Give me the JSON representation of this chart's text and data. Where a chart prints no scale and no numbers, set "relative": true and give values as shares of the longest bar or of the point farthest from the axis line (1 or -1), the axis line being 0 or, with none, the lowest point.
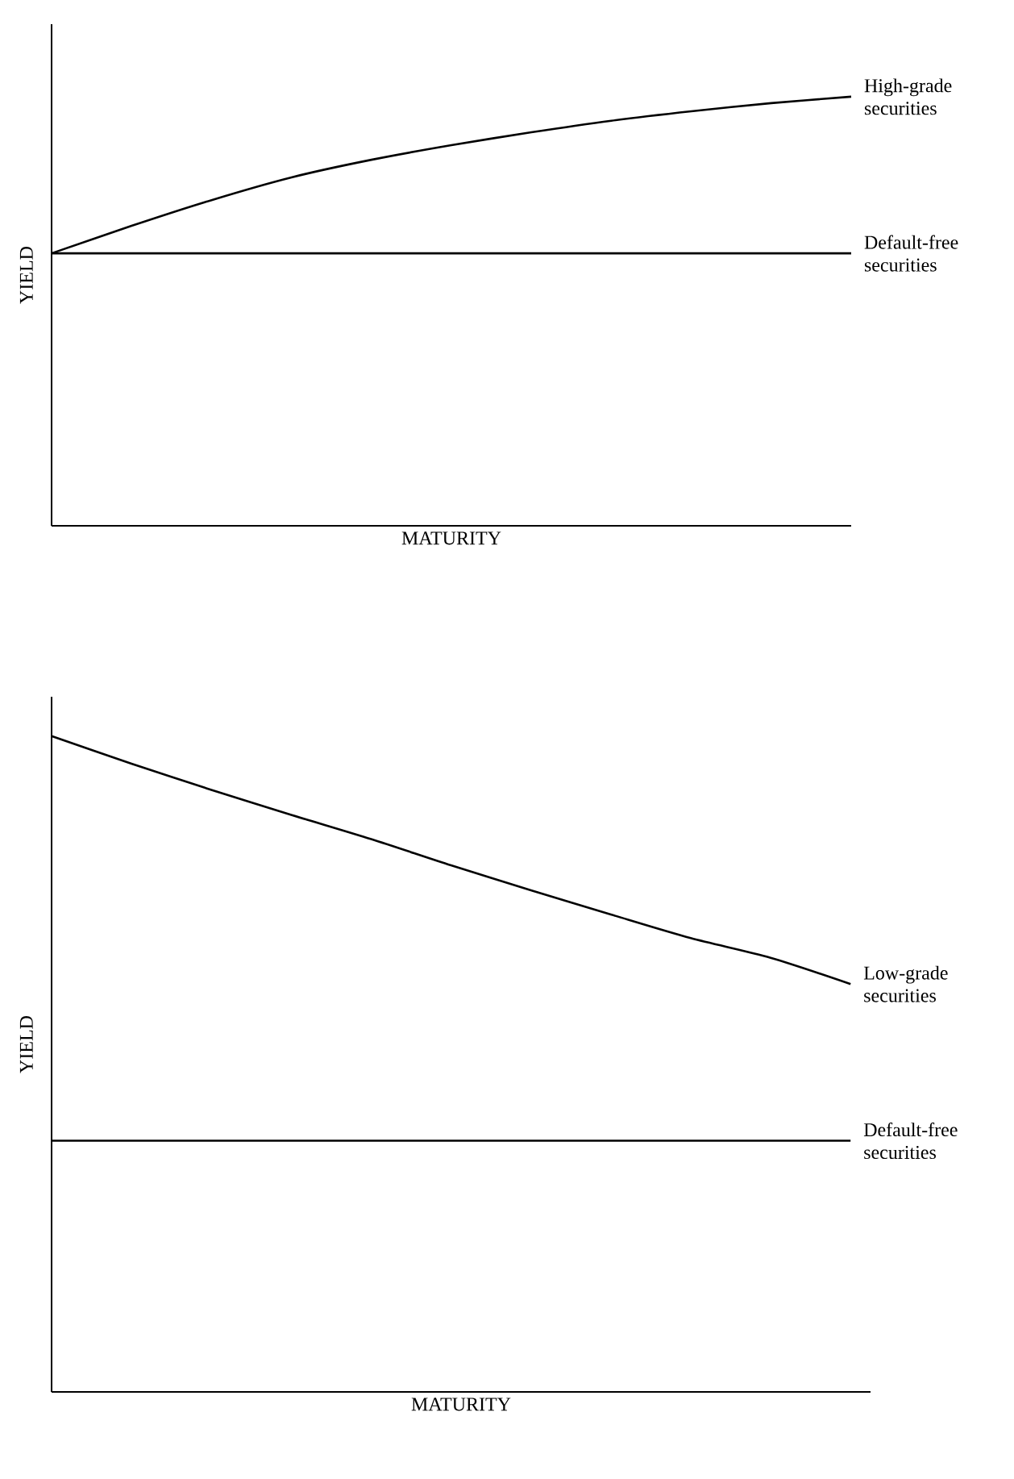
{
  "chart_data": [
    {
      "type": "line",
      "relative": true,
      "xlabel": "MATURITY",
      "ylabel": "YIELD",
      "categories": [
        null,
        null,
        null,
        null,
        null,
        null,
        null,
        null,
        null,
        null,
        null
      ],
      "series": [
        {
          "name": "High-grade securities",
          "color": "#000000",
          "values": [
            0.635,
            0.699,
            0.759,
            0.812,
            0.853,
            0.887,
            0.917,
            0.944,
            0.966,
            0.985,
            1
          ]
        },
        {
          "name": "Default-free securities",
          "color": "#000000",
          "values": [
            0.635,
            0.635,
            0.635,
            0.635,
            0.635,
            0.635,
            0.635,
            0.635,
            0.635,
            0.635,
            0.635
          ]
        }
      ]
    },
    {
      "type": "line",
      "relative": true,
      "xlabel": "MATURITY",
      "ylabel": "YIELD",
      "categories": [
        null,
        null,
        null,
        null,
        null,
        null,
        null,
        null,
        null,
        null,
        null
      ],
      "series": [
        {
          "name": "Low-grade securities",
          "color": "#000000",
          "values": [
            1,
            0.958,
            0.918,
            0.88,
            0.843,
            0.803,
            0.765,
            0.728,
            0.692,
            0.662,
            0.622
          ]
        },
        {
          "name": "Default-free securities",
          "color": "#000000",
          "values": [
            0.383,
            0.383,
            0.383,
            0.383,
            0.383,
            0.383,
            0.383,
            0.383,
            0.383,
            0.383,
            0.383
          ]
        }
      ]
    }
  ]
}
